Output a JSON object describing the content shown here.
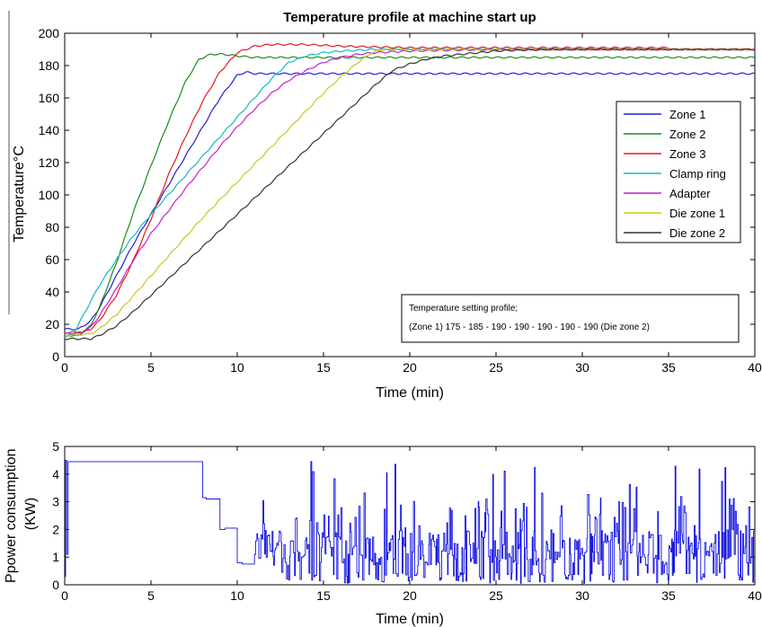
{
  "chart_data": [
    {
      "type": "line",
      "title": "Temperature profile at machine start up",
      "xlabel": "Time (min)",
      "ylabel": "Temperature°C",
      "xlim": [
        0,
        40
      ],
      "ylim": [
        0,
        200
      ],
      "xticks": [
        0,
        5,
        10,
        15,
        20,
        25,
        30,
        35,
        40
      ],
      "yticks": [
        0,
        20,
        40,
        60,
        80,
        100,
        120,
        140,
        160,
        180,
        200
      ],
      "grid": false,
      "legend_position": "right",
      "annotation": {
        "line1": "Temperature setting profile;",
        "line2": "(Zone 1) 175 - 185 - 190 - 190 - 190 - 190 - 190 (Die zone 2)"
      },
      "series": [
        {
          "name": "Zone 1",
          "color": "#1f1fd6",
          "x": [
            0,
            0.8,
            1.5,
            2,
            3,
            4,
            5,
            6,
            7,
            8,
            9,
            10,
            10.5,
            11,
            12,
            15,
            20,
            25,
            30,
            35,
            40
          ],
          "y": [
            17,
            17,
            22,
            30,
            50,
            70,
            88,
            106,
            124,
            142,
            160,
            174,
            176,
            175,
            175,
            175,
            175,
            175,
            175,
            175,
            175
          ]
        },
        {
          "name": "Zone 2",
          "color": "#1a8a1a",
          "x": [
            0,
            0.8,
            1.5,
            2,
            3,
            4,
            5,
            6,
            7,
            7.8,
            8.5,
            9.2,
            10,
            11,
            12,
            15,
            20,
            25,
            30,
            35,
            40
          ],
          "y": [
            13,
            13,
            19,
            30,
            58,
            90,
            118,
            145,
            170,
            184,
            187,
            187,
            186,
            185,
            185,
            185,
            185,
            185,
            185,
            185,
            185
          ]
        },
        {
          "name": "Zone 3",
          "color": "#e01a1a",
          "x": [
            0,
            1,
            1.5,
            2,
            3,
            4,
            5,
            6,
            7,
            8,
            9,
            10,
            11,
            12,
            14,
            16,
            20,
            25,
            30,
            35
          ],
          "y": [
            15,
            15,
            17,
            22,
            38,
            60,
            85,
            112,
            136,
            158,
            176,
            188,
            192,
            193,
            193,
            192,
            191,
            191,
            191,
            191
          ]
        },
        {
          "name": "Clamp ring",
          "color": "#18b8c0",
          "x": [
            0,
            0.5,
            1,
            2,
            3,
            4,
            5,
            6,
            7,
            8,
            9,
            10,
            11,
            12,
            13,
            14,
            15,
            16,
            18,
            20,
            25,
            30
          ],
          "y": [
            12,
            14,
            24,
            44,
            60,
            75,
            88,
            100,
            112,
            124,
            136,
            148,
            160,
            172,
            182,
            186,
            188,
            189,
            190,
            190,
            190,
            190
          ]
        },
        {
          "name": "Adapter",
          "color": "#c81ec8",
          "x": [
            0,
            1,
            1.5,
            2,
            3,
            4,
            5,
            6,
            7,
            8,
            9,
            10,
            11,
            12,
            13,
            14,
            15,
            16,
            17,
            18,
            20,
            25,
            30,
            35,
            40
          ],
          "y": [
            14,
            15,
            18,
            25,
            42,
            60,
            76,
            90,
            104,
            117,
            130,
            142,
            153,
            163,
            171,
            177,
            182,
            185,
            187,
            188,
            189,
            190,
            190,
            190,
            190
          ]
        },
        {
          "name": "Die zone 1",
          "color": "#c8c81e",
          "x": [
            0,
            1.5,
            2,
            3,
            4,
            5,
            6,
            7,
            8,
            9,
            10,
            11,
            12,
            13,
            14,
            15,
            16,
            17,
            17.8,
            18.5,
            20,
            25,
            30,
            40
          ],
          "y": [
            13,
            14,
            17,
            26,
            38,
            50,
            62,
            74,
            86,
            97,
            108,
            119,
            130,
            141,
            152,
            163,
            173,
            182,
            188,
            190,
            190,
            190,
            190,
            190
          ]
        },
        {
          "name": "Die zone 2",
          "color": "#333333",
          "x": [
            0,
            1.5,
            2,
            3,
            4,
            5,
            6,
            7,
            8,
            9,
            10,
            11,
            12,
            13,
            14,
            15,
            16,
            17,
            18,
            19,
            20,
            21,
            22,
            23,
            24,
            25,
            26,
            28,
            30,
            35,
            40
          ],
          "y": [
            11,
            11,
            13,
            19,
            28,
            38,
            48,
            58,
            68,
            78,
            88,
            98,
            108,
            118,
            128,
            138,
            148,
            158,
            168,
            177,
            181,
            184,
            186,
            187,
            188,
            189,
            189.5,
            190,
            190,
            190,
            190
          ]
        }
      ]
    },
    {
      "type": "line",
      "title": "",
      "xlabel": "Time (min)",
      "ylabel": "Ppower consumption (KW)",
      "xlim": [
        0,
        40
      ],
      "ylim": [
        0,
        5
      ],
      "xticks": [
        0,
        5,
        10,
        15,
        20,
        25,
        30,
        35,
        40
      ],
      "yticks": [
        0,
        1,
        2,
        3,
        4,
        5
      ],
      "grid": false,
      "series": [
        {
          "color": "#1010e0",
          "steps_x": [
            0,
            0.05,
            0.12,
            0.2,
            8,
            8.2,
            9,
            9.3,
            10,
            10.3,
            11
          ],
          "steps_y": [
            0.3,
            4.5,
            1.1,
            4.45,
            3.15,
            3.1,
            2.0,
            2.05,
            0.8,
            0.75,
            0.8
          ],
          "noise_from": 11,
          "noise_base_min": 0.7,
          "noise_base_max": 2.0,
          "noise_spike_max": 4.5,
          "noise_low_min": 0.05
        }
      ]
    }
  ]
}
